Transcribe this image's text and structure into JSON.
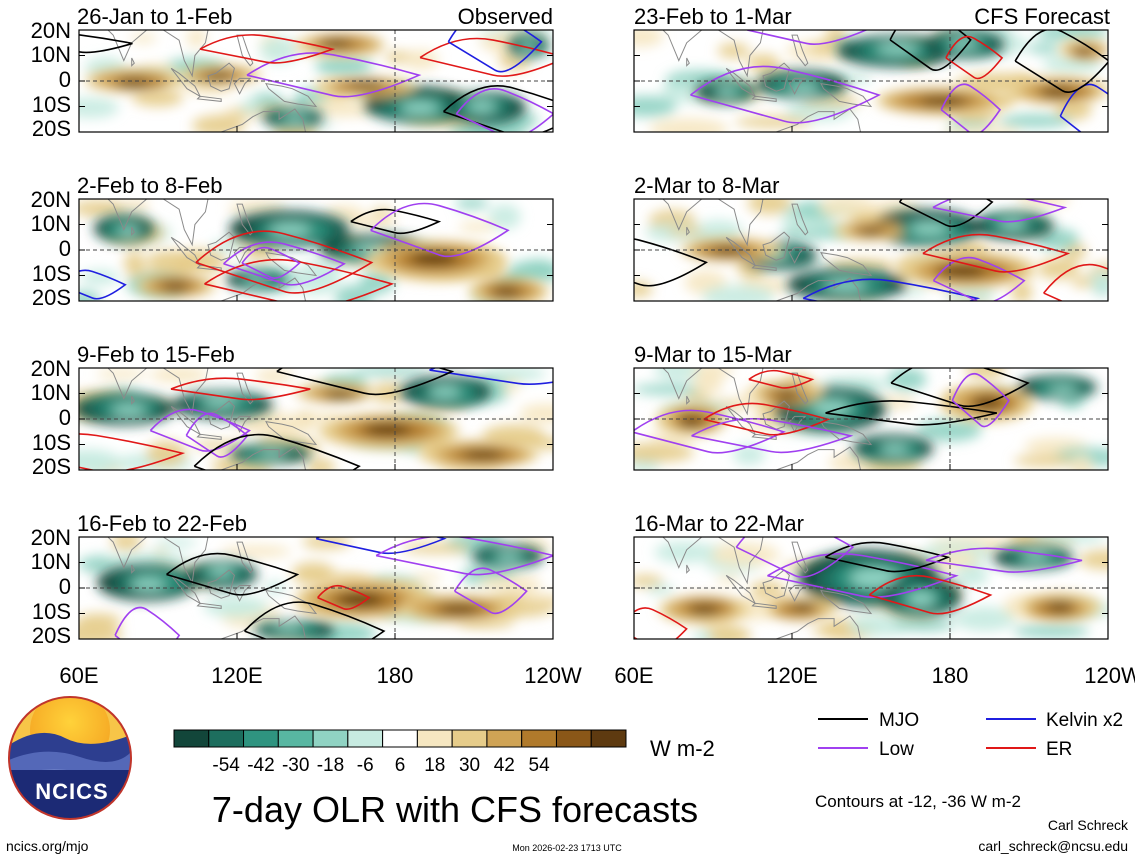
{
  "title": "7-day OLR with CFS forecasts",
  "units": "W m-2",
  "contour_note": "Contours at -12, -36 W m-2",
  "author": "Carl Schreck",
  "email": "carl_schreck@ncsu.edu",
  "url": "ncics.org/mjo",
  "timestamp": "Mon 2026-02-23 1713 UTC",
  "logo_text": "NCICS",
  "colors": {
    "mjo": "#000000",
    "kelvin": "#1f1fe0",
    "low": "#a040f0",
    "er": "#e01818",
    "land": "#8a8a8a",
    "zero_line": "#444444"
  },
  "chart_data": {
    "type": "heatmap",
    "variable": "OLR anomaly",
    "columns": [
      {
        "label": "Observed",
        "panels": [
          "26-Jan to 1-Feb",
          "2-Feb to 8-Feb",
          "9-Feb to 15-Feb",
          "16-Feb to 22-Feb"
        ]
      },
      {
        "label": "CFS Forecast",
        "panels": [
          "23-Feb to 1-Mar",
          "2-Mar to 8-Mar",
          "9-Mar to 15-Mar",
          "16-Mar to 22-Mar"
        ]
      }
    ],
    "lat_ticks": [
      "20N",
      "10N",
      "0",
      "10S",
      "20S"
    ],
    "lon_ticks": [
      "60E",
      "120E",
      "180",
      "120W"
    ],
    "lon_tick_values": [
      60,
      120,
      180,
      240
    ],
    "lon_range": [
      60,
      240
    ],
    "lat_range": [
      -20,
      20
    ],
    "colorbar": {
      "labels": [
        "-54",
        "-42",
        "-30",
        "-18",
        "-6",
        "6",
        "18",
        "30",
        "42",
        "54"
      ],
      "colors": [
        "#12463a",
        "#1d6e5e",
        "#2f9480",
        "#58b7a2",
        "#90d3c3",
        "#c7ebe1",
        "#ffffff",
        "#f6e7c1",
        "#e6cc8a",
        "#cfa355",
        "#b07a2b",
        "#8a5718",
        "#5e3a10"
      ]
    },
    "legend": [
      {
        "name": "MJO",
        "key": "mjo"
      },
      {
        "name": "Kelvin x2",
        "key": "kelvin"
      },
      {
        "name": "Low",
        "key": "low"
      },
      {
        "name": "ER",
        "key": "er"
      }
    ]
  }
}
